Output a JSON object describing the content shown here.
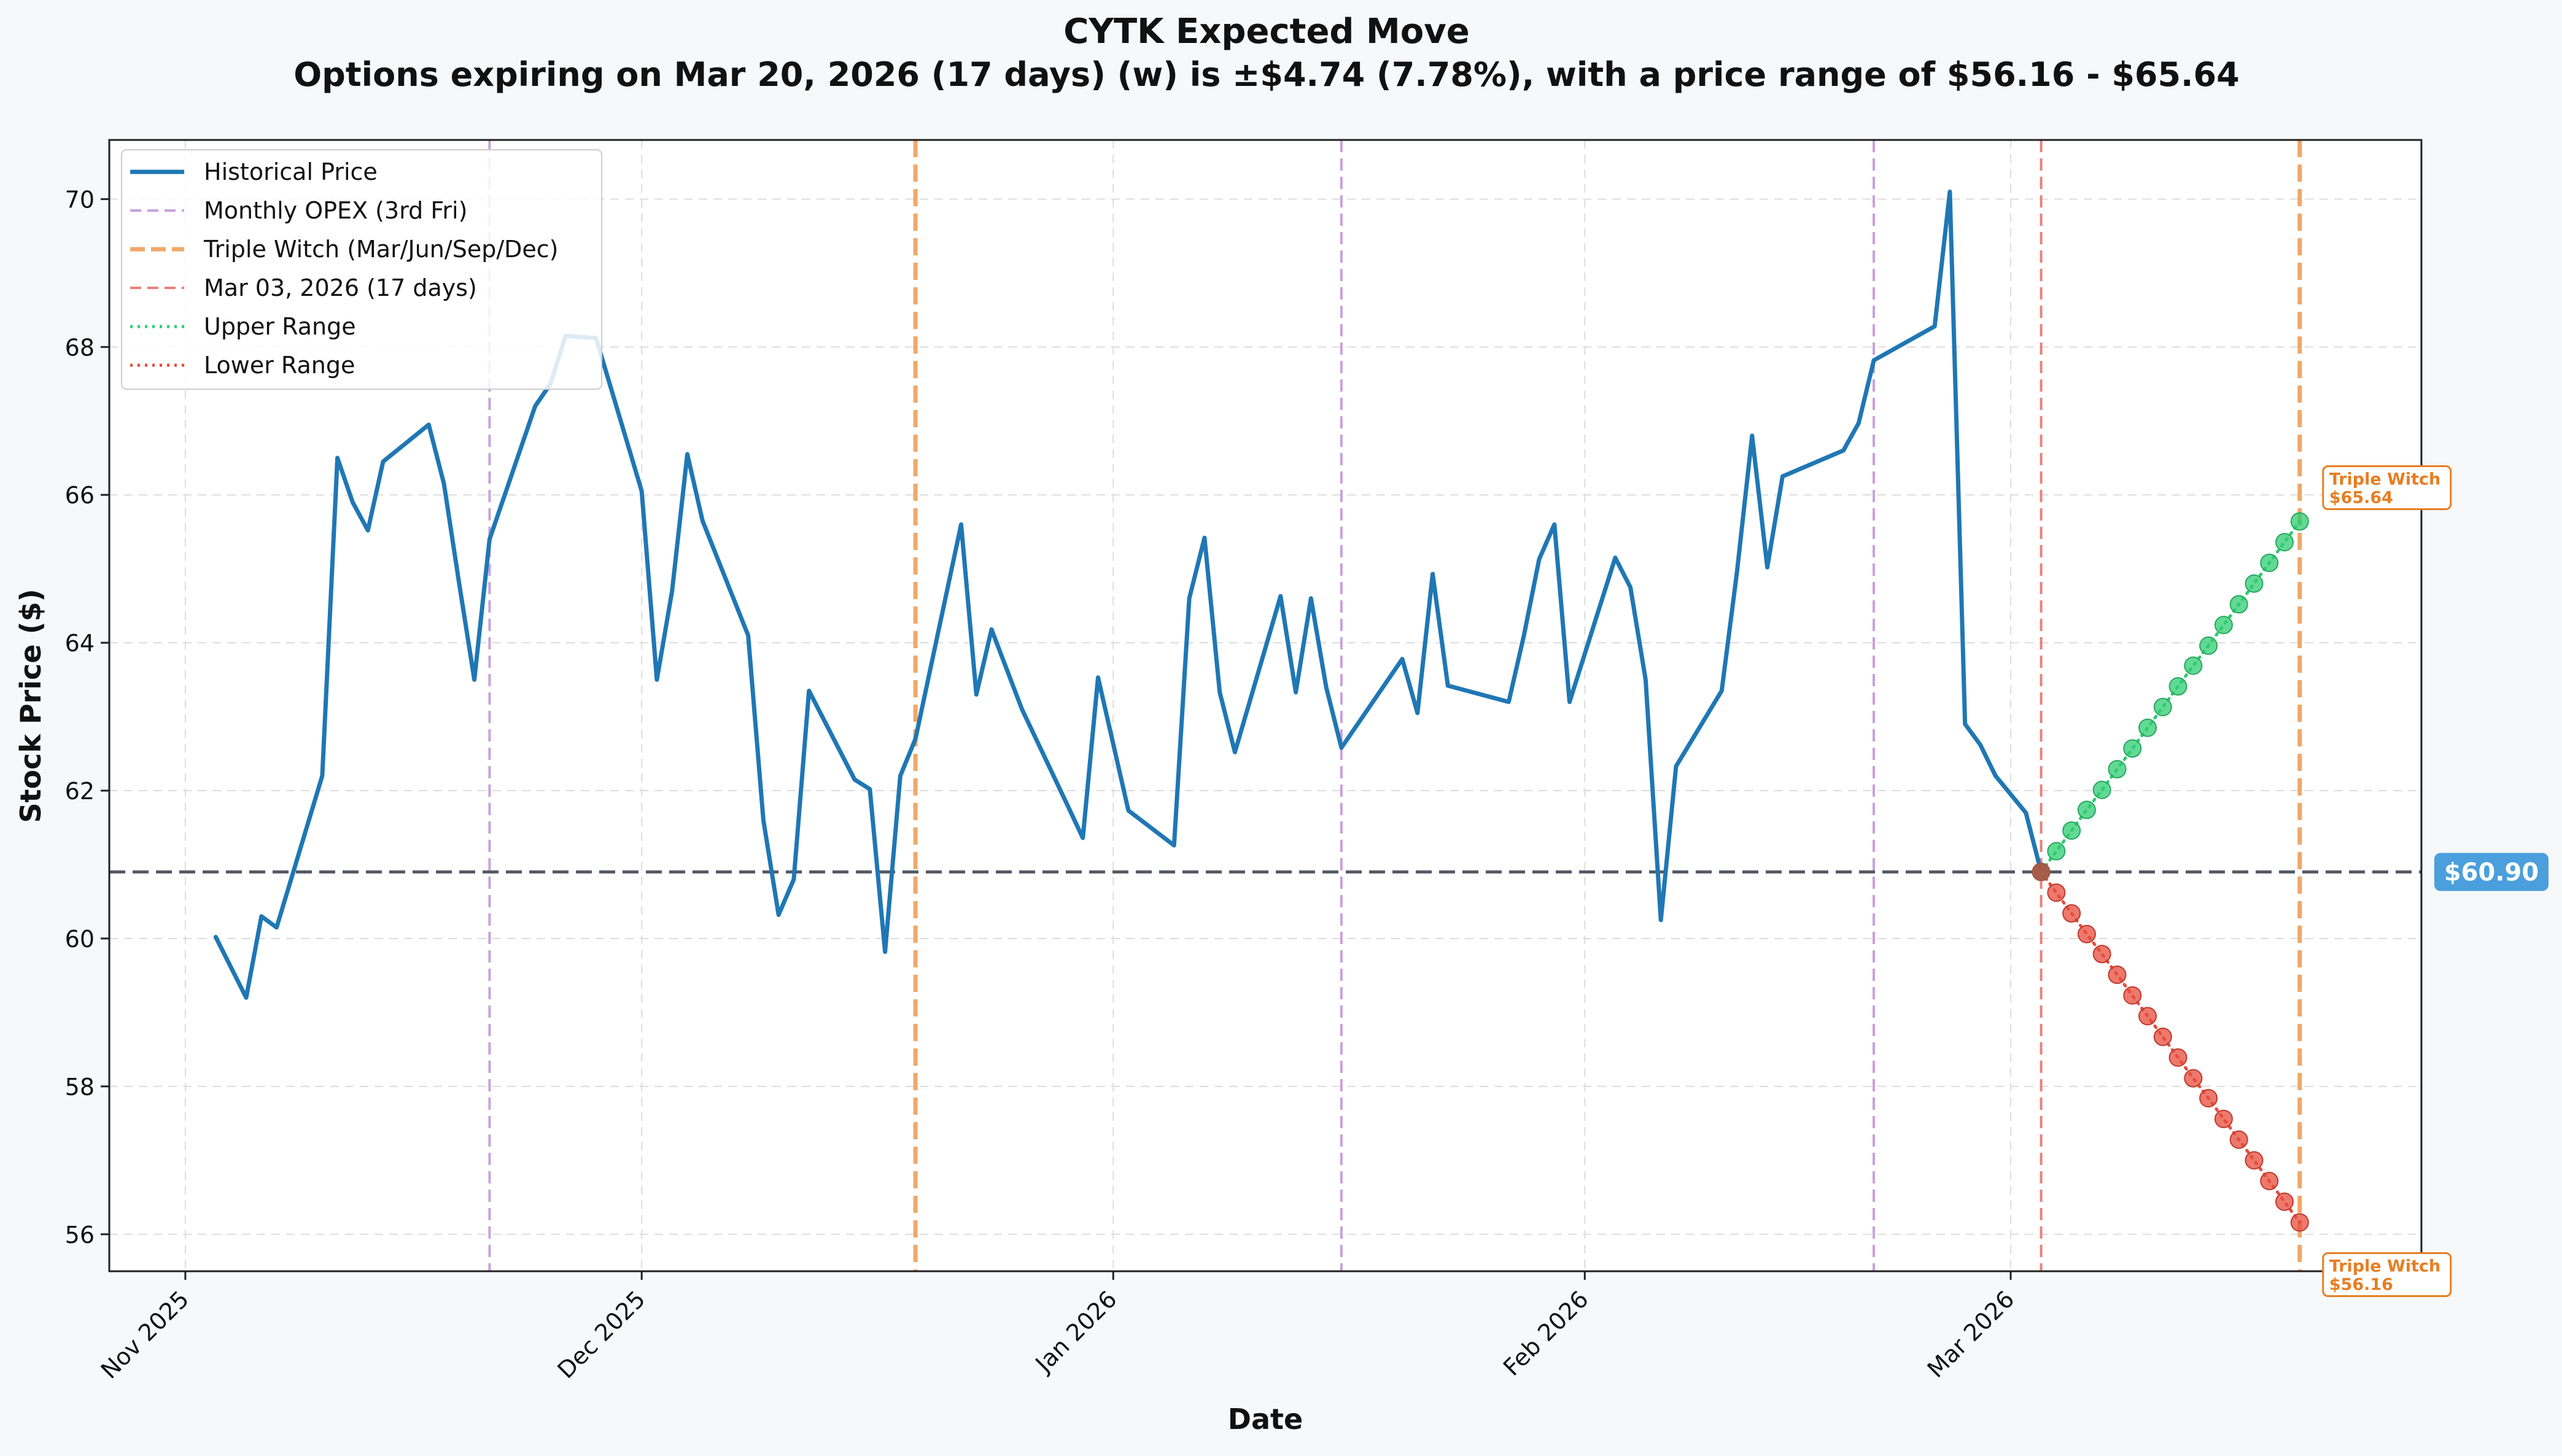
{
  "chart_data": {
    "type": "line",
    "title": "CYTK Expected Move",
    "subtitle": "Options expiring on Mar 20, 2026 (17 days) (w) is ±$4.74 (7.78%), with a price range of $56.16 - $65.64",
    "xlabel": "Date",
    "ylabel": "Stock Price ($)",
    "xlim": [
      "2025-10-27",
      "2026-03-28"
    ],
    "ylim": [
      55.5,
      70.8
    ],
    "x_ticks": [
      {
        "date": "2025-11-01",
        "label": "Nov 2025"
      },
      {
        "date": "2025-12-01",
        "label": "Dec 2025"
      },
      {
        "date": "2026-01-01",
        "label": "Jan 2026"
      },
      {
        "date": "2026-02-01",
        "label": "Feb 2026"
      },
      {
        "date": "2026-03-01",
        "label": "Mar 2026"
      }
    ],
    "y_ticks": [
      56,
      58,
      60,
      62,
      64,
      66,
      68,
      70
    ],
    "grid": true,
    "legend_position": "top-left",
    "colors": {
      "historical": "#1f77b4",
      "monthly_opex": "#c9a0dc",
      "triple_witch": "#f0a868",
      "current_date": "#e8837a",
      "upper": "#2ecc71",
      "lower": "#e74c3c",
      "current_price": "#555b66",
      "badge": "#4a9fdc",
      "annotation": "#e67e22"
    },
    "legend": [
      {
        "key": "historical",
        "label": "Historical Price"
      },
      {
        "key": "monthly_opex",
        "label": "Monthly OPEX (3rd Fri)"
      },
      {
        "key": "triple_witch",
        "label": "Triple Witch (Mar/Jun/Sep/Dec)"
      },
      {
        "key": "current_date",
        "label": "Mar 03, 2026 (17 days)"
      },
      {
        "key": "upper",
        "label": "Upper Range"
      },
      {
        "key": "lower",
        "label": "Lower Range"
      }
    ],
    "series": [
      {
        "name": "Historical Price",
        "points": [
          [
            "2025-11-03",
            60.02
          ],
          [
            "2025-11-05",
            59.2
          ],
          [
            "2025-11-06",
            60.3
          ],
          [
            "2025-11-07",
            60.15
          ],
          [
            "2025-11-10",
            62.2
          ],
          [
            "2025-11-11",
            66.5
          ],
          [
            "2025-11-12",
            65.9
          ],
          [
            "2025-11-13",
            65.52
          ],
          [
            "2025-11-14",
            66.45
          ],
          [
            "2025-11-17",
            66.95
          ],
          [
            "2025-11-18",
            66.15
          ],
          [
            "2025-11-19",
            64.8
          ],
          [
            "2025-11-20",
            63.5
          ],
          [
            "2025-11-21",
            65.4
          ],
          [
            "2025-11-24",
            67.2
          ],
          [
            "2025-11-25",
            67.5
          ],
          [
            "2025-11-26",
            68.15
          ],
          [
            "2025-11-28",
            68.12
          ],
          [
            "2025-12-01",
            66.05
          ],
          [
            "2025-12-02",
            63.5
          ],
          [
            "2025-12-03",
            64.7
          ],
          [
            "2025-12-04",
            66.55
          ],
          [
            "2025-12-05",
            65.65
          ],
          [
            "2025-12-08",
            64.1
          ],
          [
            "2025-12-09",
            61.6
          ],
          [
            "2025-12-10",
            60.32
          ],
          [
            "2025-12-11",
            60.8
          ],
          [
            "2025-12-12",
            63.35
          ],
          [
            "2025-12-15",
            62.15
          ],
          [
            "2025-12-16",
            62.02
          ],
          [
            "2025-12-17",
            59.82
          ],
          [
            "2025-12-18",
            62.2
          ],
          [
            "2025-12-19",
            62.7
          ],
          [
            "2025-12-22",
            65.6
          ],
          [
            "2025-12-23",
            63.3
          ],
          [
            "2025-12-24",
            64.18
          ],
          [
            "2025-12-26",
            63.1
          ],
          [
            "2025-12-29",
            61.8
          ],
          [
            "2025-12-30",
            61.36
          ],
          [
            "2025-12-31",
            63.53
          ],
          [
            "2026-01-02",
            61.73
          ],
          [
            "2026-01-05",
            61.26
          ],
          [
            "2026-01-06",
            64.6
          ],
          [
            "2026-01-07",
            65.42
          ],
          [
            "2026-01-08",
            63.33
          ],
          [
            "2026-01-09",
            62.52
          ],
          [
            "2026-01-12",
            64.63
          ],
          [
            "2026-01-13",
            63.33
          ],
          [
            "2026-01-14",
            64.6
          ],
          [
            "2026-01-15",
            63.4
          ],
          [
            "2026-01-16",
            62.58
          ],
          [
            "2026-01-20",
            63.78
          ],
          [
            "2026-01-21",
            63.05
          ],
          [
            "2026-01-22",
            64.93
          ],
          [
            "2026-01-23",
            63.42
          ],
          [
            "2026-01-27",
            63.2
          ],
          [
            "2026-01-28",
            64.1
          ],
          [
            "2026-01-29",
            65.13
          ],
          [
            "2026-01-30",
            65.6
          ],
          [
            "2026-01-31",
            63.2
          ],
          [
            "2026-02-03",
            65.15
          ],
          [
            "2026-02-04",
            64.75
          ],
          [
            "2026-02-05",
            63.5
          ],
          [
            "2026-02-06",
            60.25
          ],
          [
            "2026-02-07",
            62.33
          ],
          [
            "2026-02-10",
            63.35
          ],
          [
            "2026-02-11",
            64.95
          ],
          [
            "2026-02-12",
            66.8
          ],
          [
            "2026-02-13",
            65.02
          ],
          [
            "2026-02-14",
            66.25
          ],
          [
            "2026-02-18",
            66.6
          ],
          [
            "2026-02-19",
            66.97
          ],
          [
            "2026-02-20",
            67.82
          ],
          [
            "2026-02-24",
            68.28
          ],
          [
            "2026-02-25",
            70.1
          ],
          [
            "2026-02-26",
            62.9
          ],
          [
            "2026-02-27",
            62.62
          ],
          [
            "2026-02-28",
            62.2
          ],
          [
            "2026-03-02",
            61.7
          ],
          [
            "2026-03-03",
            60.9
          ]
        ]
      },
      {
        "name": "Upper Range",
        "points": [
          [
            "2026-03-03",
            60.9
          ],
          [
            "2026-03-04",
            61.18
          ],
          [
            "2026-03-05",
            61.46
          ],
          [
            "2026-03-06",
            61.74
          ],
          [
            "2026-03-07",
            62.01
          ],
          [
            "2026-03-08",
            62.29
          ],
          [
            "2026-03-09",
            62.57
          ],
          [
            "2026-03-10",
            62.85
          ],
          [
            "2026-03-11",
            63.13
          ],
          [
            "2026-03-12",
            63.41
          ],
          [
            "2026-03-13",
            63.69
          ],
          [
            "2026-03-14",
            63.96
          ],
          [
            "2026-03-15",
            64.24
          ],
          [
            "2026-03-16",
            64.52
          ],
          [
            "2026-03-17",
            64.8
          ],
          [
            "2026-03-18",
            65.08
          ],
          [
            "2026-03-19",
            65.36
          ],
          [
            "2026-03-20",
            65.64
          ]
        ]
      },
      {
        "name": "Lower Range",
        "points": [
          [
            "2026-03-03",
            60.9
          ],
          [
            "2026-03-04",
            60.62
          ],
          [
            "2026-03-05",
            60.34
          ],
          [
            "2026-03-06",
            60.06
          ],
          [
            "2026-03-07",
            59.79
          ],
          [
            "2026-03-08",
            59.51
          ],
          [
            "2026-03-09",
            59.23
          ],
          [
            "2026-03-10",
            58.95
          ],
          [
            "2026-03-11",
            58.67
          ],
          [
            "2026-03-12",
            58.39
          ],
          [
            "2026-03-13",
            58.11
          ],
          [
            "2026-03-14",
            57.84
          ],
          [
            "2026-03-15",
            57.56
          ],
          [
            "2026-03-16",
            57.28
          ],
          [
            "2026-03-17",
            57.0
          ],
          [
            "2026-03-18",
            56.72
          ],
          [
            "2026-03-19",
            56.44
          ],
          [
            "2026-03-20",
            56.16
          ]
        ]
      }
    ],
    "vertical_lines": [
      {
        "date": "2025-11-21",
        "kind": "monthly_opex"
      },
      {
        "date": "2025-12-19",
        "kind": "triple_witch"
      },
      {
        "date": "2026-01-16",
        "kind": "monthly_opex"
      },
      {
        "date": "2026-02-20",
        "kind": "monthly_opex"
      },
      {
        "date": "2026-03-03",
        "kind": "current_date"
      },
      {
        "date": "2026-03-20",
        "kind": "triple_witch"
      }
    ],
    "current_price": {
      "value": 60.9,
      "label": "$60.90"
    },
    "annotations": [
      {
        "date": "2026-03-20",
        "value": 65.64,
        "line1": "Triple Witch",
        "line2": "$65.64"
      },
      {
        "date": "2026-03-20",
        "value": 56.16,
        "line1": "Triple Witch",
        "line2": "$56.16"
      }
    ]
  }
}
